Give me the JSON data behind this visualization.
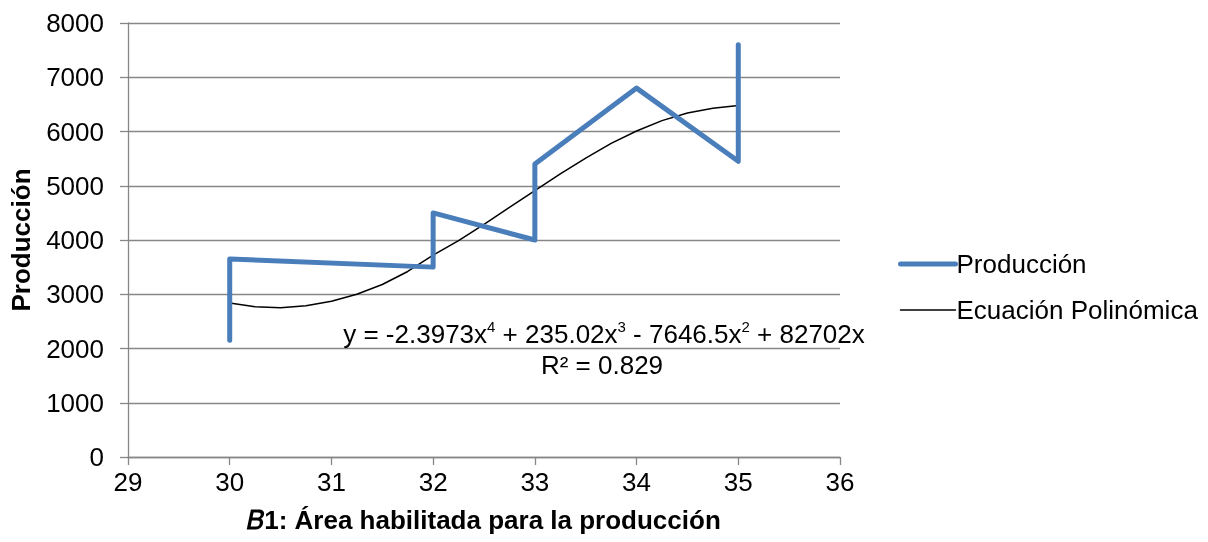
{
  "chart_data": {
    "type": "line",
    "xlabel": "𝐵1: Área habilitada para la producción",
    "ylabel": "Producción",
    "series": [
      {
        "name": "Producción",
        "color": "#4a7ebb",
        "x": [
          30,
          30,
          32,
          32,
          33,
          33,
          34,
          35,
          35
        ],
        "values": [
          2150,
          3650,
          3500,
          4500,
          4000,
          5400,
          6800,
          5450,
          7600
        ]
      },
      {
        "name": "Ecuación Polinómica",
        "color": "#000000",
        "x": [
          30,
          30.25,
          30.5,
          30.75,
          31,
          31.25,
          31.5,
          31.75,
          32,
          32.25,
          32.5,
          32.75,
          33,
          33.25,
          33.5,
          33.75,
          34,
          34.25,
          34.5,
          34.75,
          35
        ],
        "values": [
          2840,
          2770,
          2750,
          2790,
          2870,
          3000,
          3180,
          3420,
          3720,
          3990,
          4290,
          4600,
          4910,
          5220,
          5510,
          5780,
          6010,
          6200,
          6340,
          6430,
          6480
        ]
      }
    ],
    "xlim": [
      29,
      36
    ],
    "xticks": [
      29,
      30,
      31,
      32,
      33,
      34,
      35,
      36
    ],
    "ylim": [
      0,
      8000
    ],
    "yticks": [
      0,
      1000,
      2000,
      3000,
      4000,
      5000,
      6000,
      7000,
      8000
    ],
    "grid": "y",
    "legend": "right",
    "marker": "none",
    "line_style": "solid",
    "annotations": [
      "y = -2.3973x$^{4}$ + 235.02x$^{3}$ - 7646.5x$^{2}$ + 82702x",
      "R² = 0.829"
    ]
  }
}
